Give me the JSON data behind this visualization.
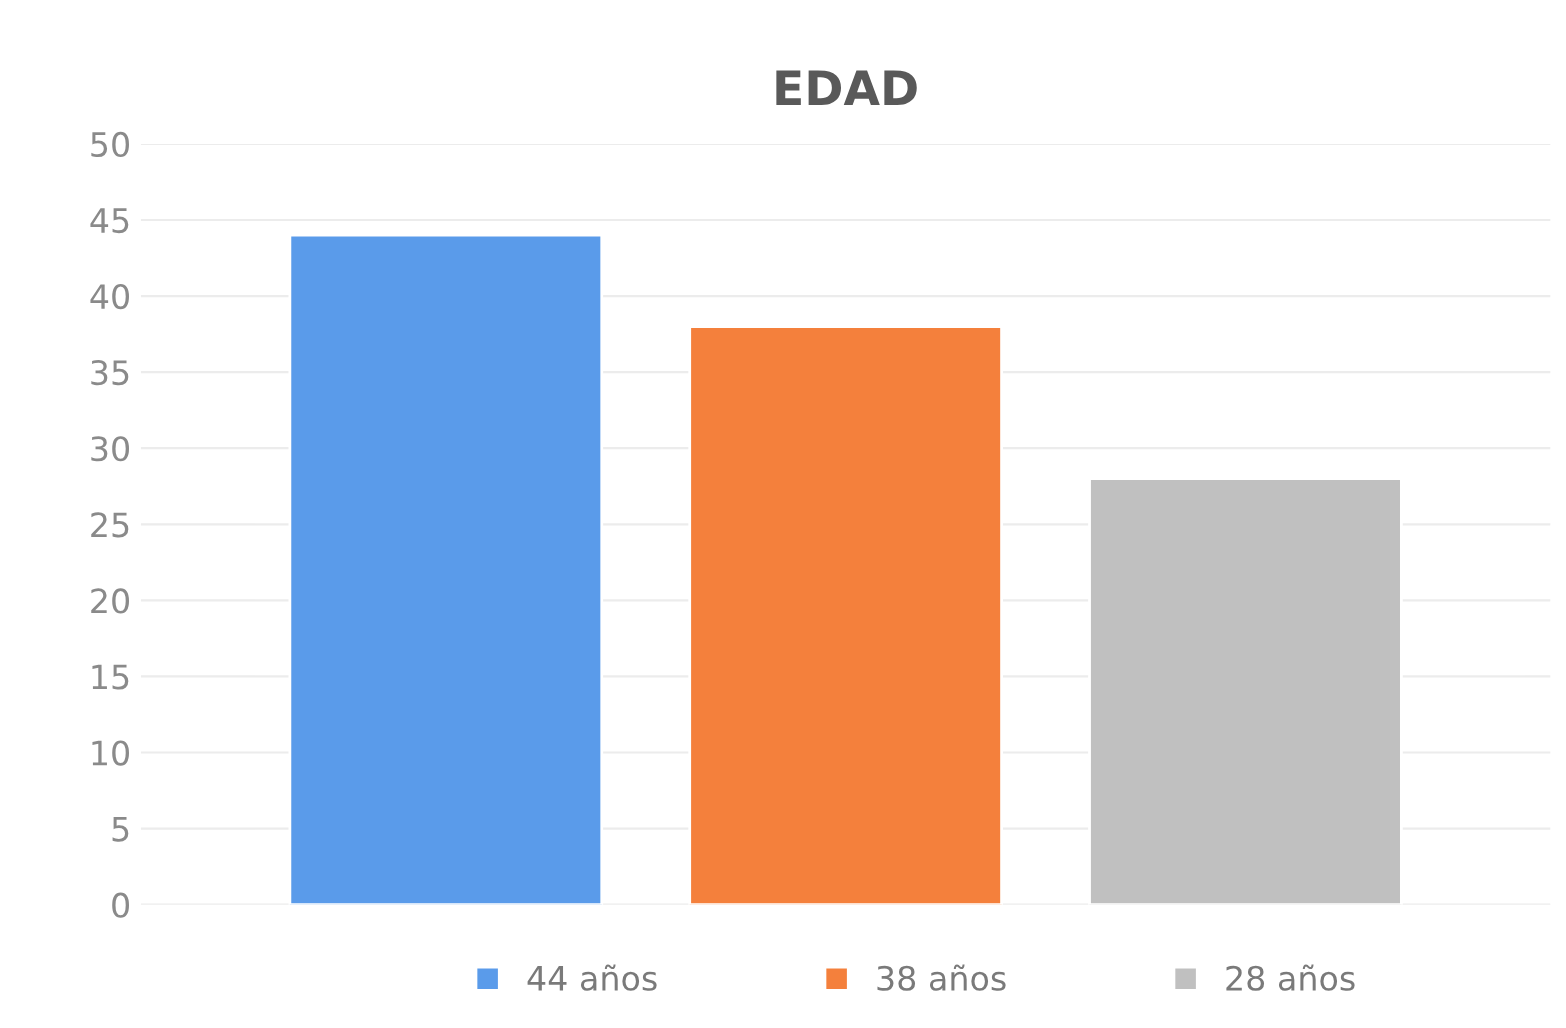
{
  "chart_data": {
    "type": "bar",
    "title": "EDAD",
    "categories": [
      null
    ],
    "series": [
      {
        "name": "44 años",
        "color": "#5a9bea",
        "values": [
          44
        ]
      },
      {
        "name": "38 años",
        "color": "#f4803c",
        "values": [
          38
        ]
      },
      {
        "name": "28 años",
        "color": "#c0c0c0",
        "values": [
          28
        ]
      }
    ],
    "ylim": [
      0,
      50
    ],
    "yticks": [
      0,
      5,
      10,
      15,
      20,
      25,
      30,
      35,
      40,
      45,
      50
    ],
    "grid": "y",
    "legend": "bottom"
  }
}
